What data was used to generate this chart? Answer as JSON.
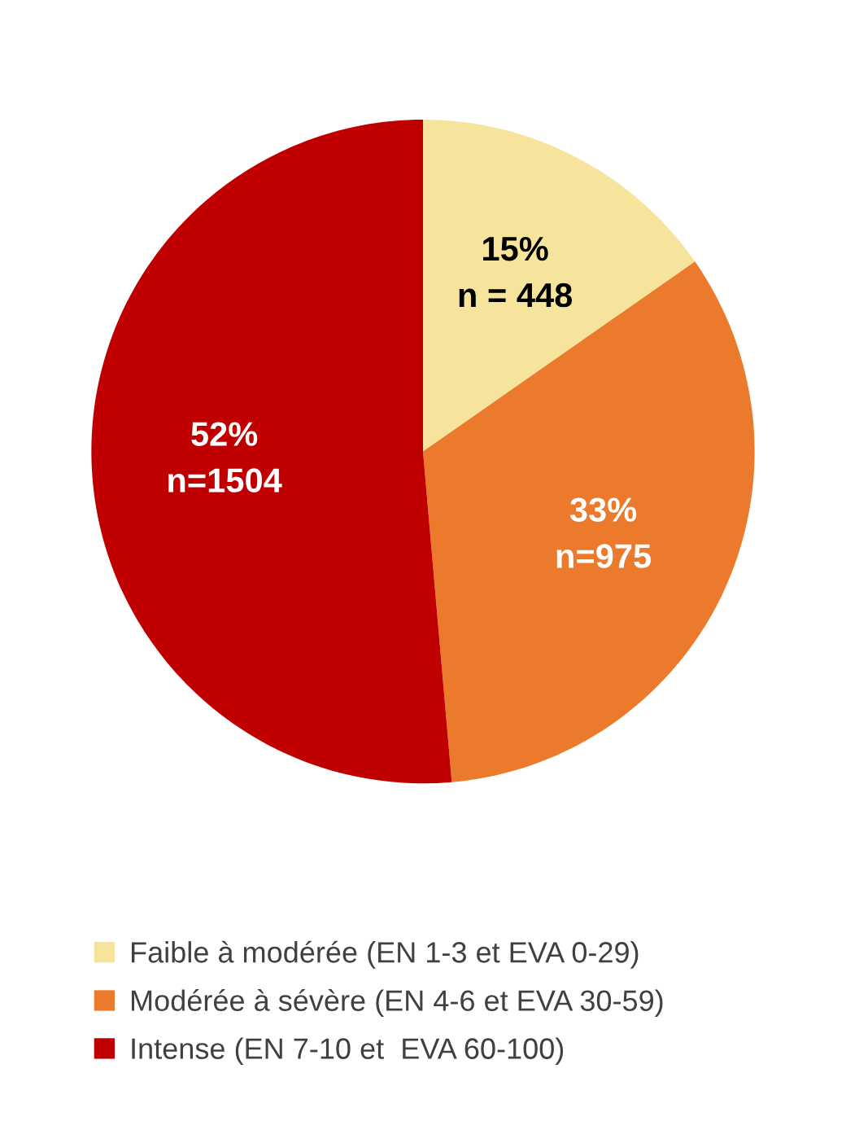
{
  "chart_data": {
    "type": "pie",
    "categories": [
      "Faible à modérée (EN 1-3 et EVA 0-29)",
      "Modérée à sévère (EN 4-6 et EVA 30-59)",
      "Intense (EN 7-10 et  EVA 60-100)"
    ],
    "values": [
      448,
      975,
      1504
    ],
    "value_labels": [
      "15%\nn = 448",
      "33%\nn=975",
      "52%\nn=1504"
    ],
    "colors": [
      "#f7e49c",
      "#ec7a2c",
      "#c00000"
    ],
    "legend": "bottom"
  }
}
